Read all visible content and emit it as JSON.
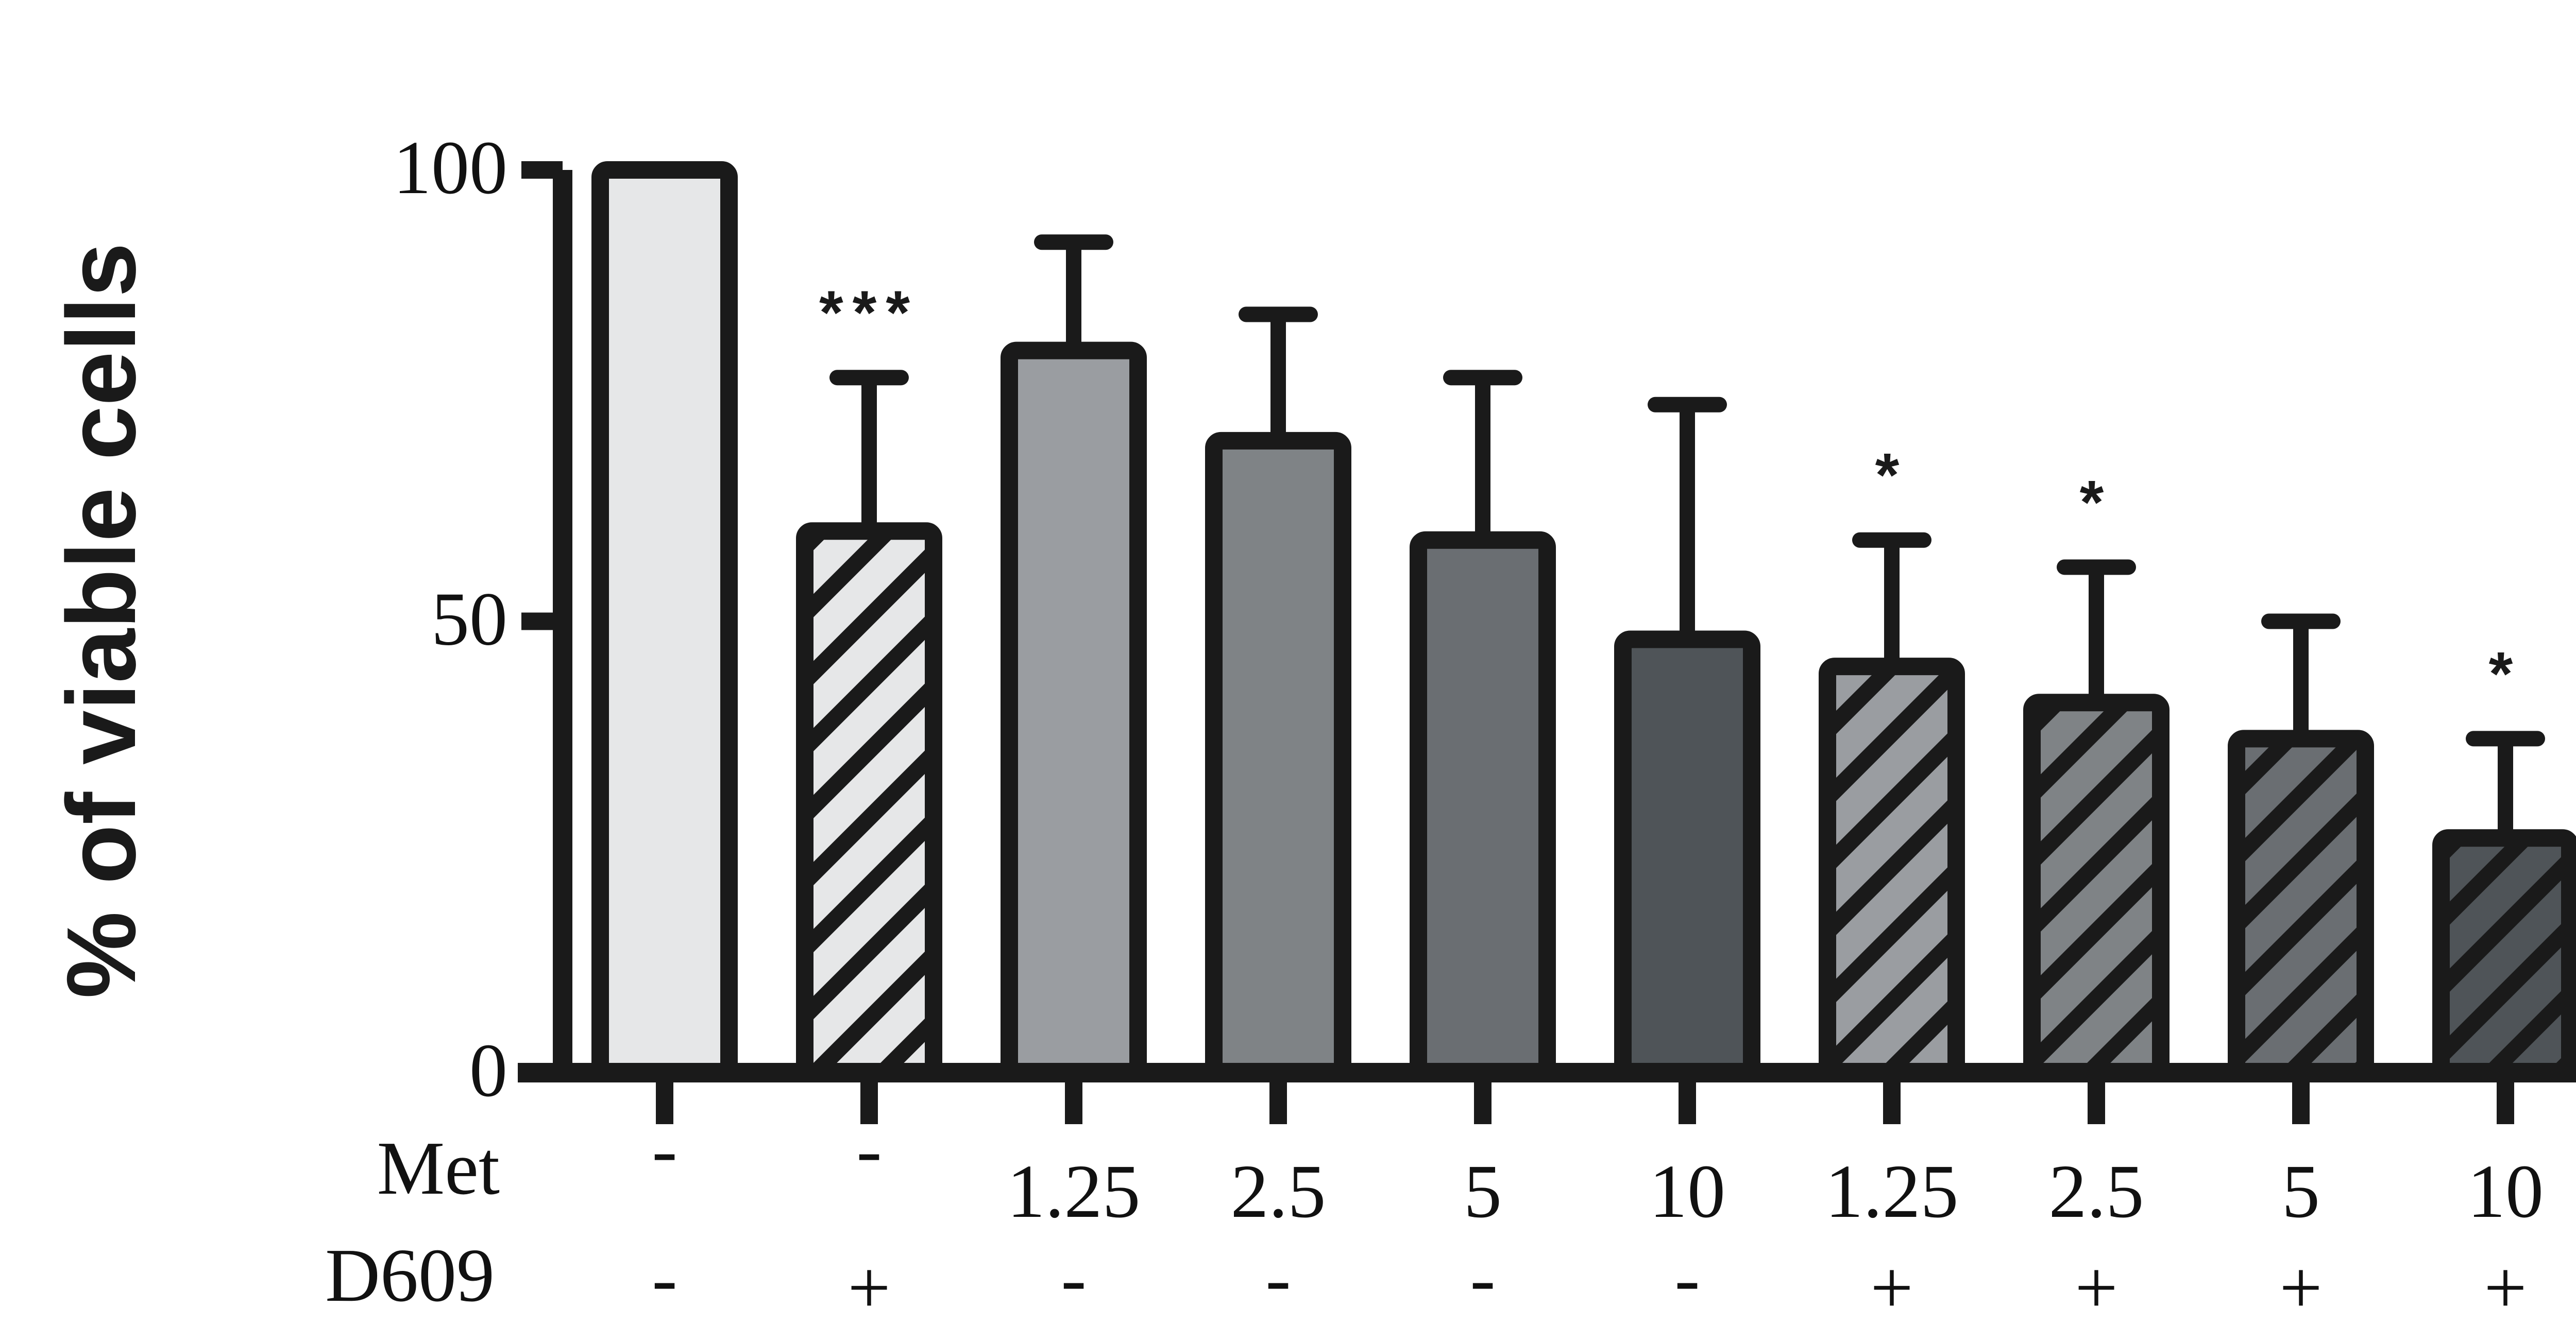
{
  "chart_data": {
    "type": "bar",
    "ylabel": "% of viable cells",
    "ylim": [
      0,
      100
    ],
    "yticks": [
      0,
      50,
      100
    ],
    "ytick_labels": [
      "0",
      "50",
      "100"
    ],
    "row_labels": [
      "Met",
      "D609"
    ],
    "met": [
      "-",
      "-",
      "1.25",
      "2.5",
      "5",
      "10",
      "1.25",
      "2.5",
      "5",
      "10"
    ],
    "d609": [
      "-",
      "+",
      "-",
      "-",
      "-",
      "-",
      "+",
      "+",
      "+",
      "+"
    ],
    "values": [
      100,
      60,
      80,
      70,
      59,
      48,
      45,
      41,
      37,
      26
    ],
    "errors": [
      0,
      17,
      12,
      14,
      18,
      26,
      14,
      15,
      13,
      11
    ],
    "significance": [
      "",
      "***",
      "",
      "",
      "",
      "",
      "*",
      "*",
      "",
      "*"
    ],
    "fill_colors": [
      "#e6e7e8",
      "#e6e7e8",
      "#9a9da1",
      "#7f8386",
      "#6a6e72",
      "#4f5458",
      "#9a9da1",
      "#7f8386",
      "#6a6e72",
      "#4f5458"
    ],
    "hatched": [
      false,
      true,
      false,
      false,
      false,
      false,
      true,
      true,
      true,
      true
    ],
    "outline_color": "#1a1a1a",
    "grid": false
  }
}
